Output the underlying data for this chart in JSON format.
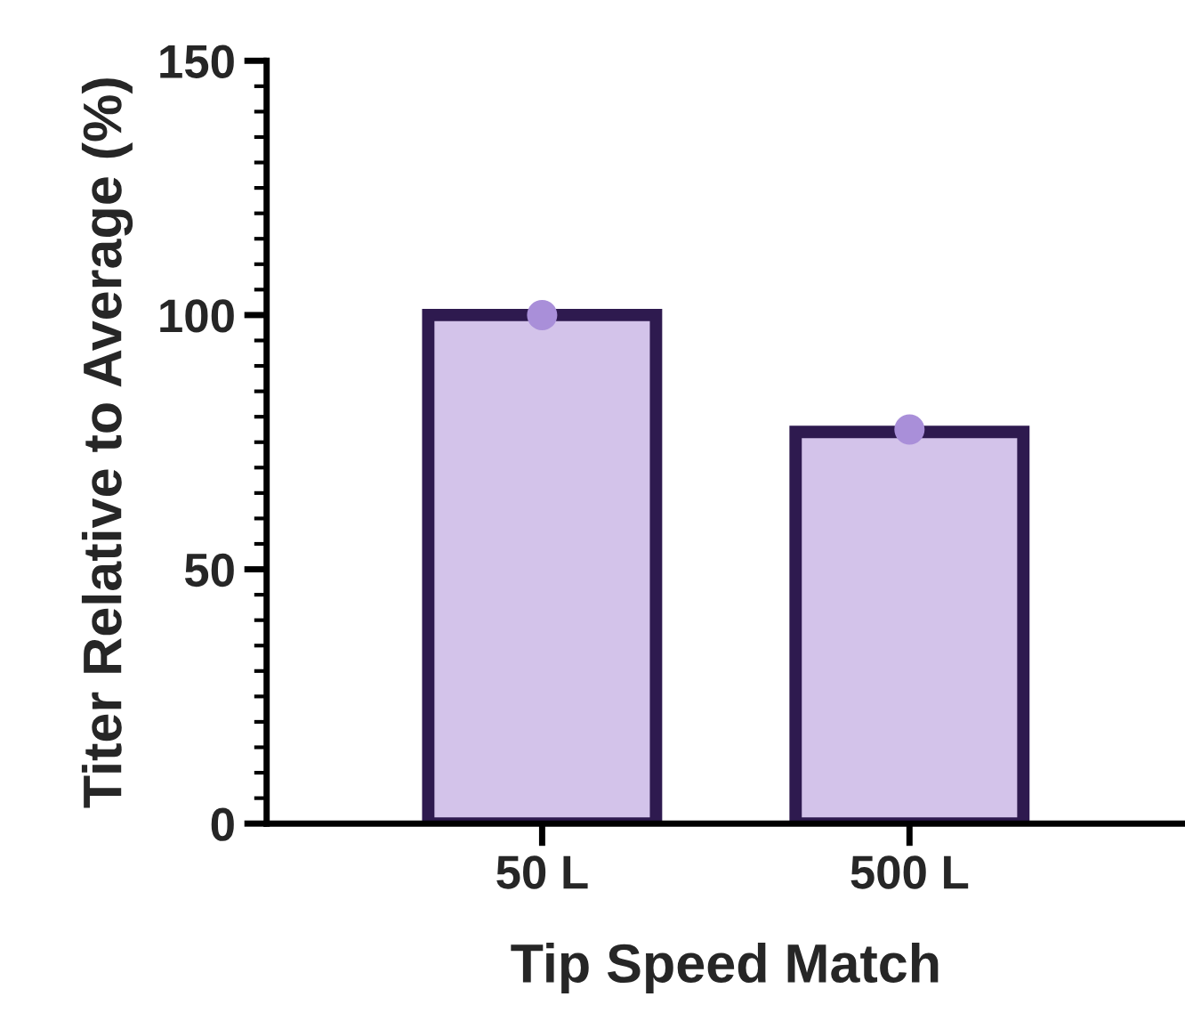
{
  "chart_data": {
    "type": "bar",
    "xlabel": "Tip Speed Match",
    "ylabel": "Titer Relative to Average (%)",
    "categories": [
      "50 L",
      "500 L"
    ],
    "series": [
      {
        "color": "#d3c3ea",
        "values": [
          100,
          77
        ]
      },
      {
        "type": "scatter",
        "color": "#a98fd9",
        "values": [
          100,
          77.5
        ]
      }
    ],
    "ylim": [
      0,
      150
    ],
    "yticks": [
      0,
      {
        "value": 5,
        "label": null
      },
      {
        "value": 10,
        "label": null
      },
      {
        "value": 15,
        "label": null
      },
      {
        "value": 20,
        "label": null
      },
      {
        "value": 25,
        "label": null
      },
      {
        "value": 30,
        "label": null
      },
      {
        "value": 35,
        "label": null
      },
      {
        "value": 40,
        "label": null
      },
      {
        "value": 45,
        "label": null
      },
      50,
      {
        "value": 55,
        "label": null
      },
      {
        "value": 60,
        "label": null
      },
      {
        "value": 65,
        "label": null
      },
      {
        "value": 70,
        "label": null
      },
      {
        "value": 75,
        "label": null
      },
      {
        "value": 80,
        "label": null
      },
      {
        "value": 85,
        "label": null
      },
      {
        "value": 90,
        "label": null
      },
      {
        "value": 95,
        "label": null
      },
      100,
      {
        "value": 105,
        "label": null
      },
      {
        "value": 110,
        "label": null
      },
      {
        "value": 115,
        "label": null
      },
      {
        "value": 120,
        "label": null
      },
      {
        "value": 125,
        "label": null
      },
      {
        "value": 130,
        "label": null
      },
      {
        "value": 135,
        "label": null
      },
      {
        "value": 140,
        "label": null
      },
      {
        "value": 145,
        "label": null
      },
      150
    ],
    "grid": false,
    "legend": false
  }
}
